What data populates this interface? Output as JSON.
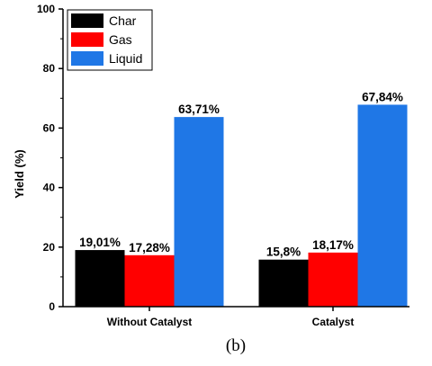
{
  "chart_data": {
    "type": "bar",
    "categories": [
      "Without Catalyst",
      "Catalyst"
    ],
    "series": [
      {
        "name": "Char",
        "color": "#000000",
        "values": [
          19.01,
          15.8
        ],
        "labels": [
          "19,01%",
          "15,8%"
        ]
      },
      {
        "name": "Gas",
        "color": "#ff0000",
        "values": [
          17.28,
          18.17
        ],
        "labels": [
          "17,28%",
          "18,17%"
        ]
      },
      {
        "name": "Liquid",
        "color": "#1f77e6",
        "values": [
          63.71,
          67.84
        ],
        "labels": [
          "63,71%",
          "67,84%"
        ]
      }
    ],
    "title": "",
    "xlabel": "",
    "ylabel": "Yield (%)",
    "ylim": [
      0,
      100
    ],
    "yticks": [
      0,
      20,
      40,
      60,
      80,
      100
    ],
    "grid": false,
    "legend_position": "top-left",
    "caption": "(b)"
  }
}
